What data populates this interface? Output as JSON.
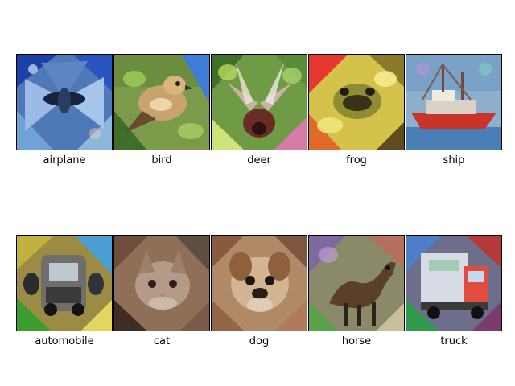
{
  "panels": [
    {
      "label": "airplane"
    },
    {
      "label": "bird"
    },
    {
      "label": "deer"
    },
    {
      "label": "frog"
    },
    {
      "label": "ship"
    },
    {
      "label": "automobile"
    },
    {
      "label": "cat"
    },
    {
      "label": "dog"
    },
    {
      "label": "horse"
    },
    {
      "label": "truck"
    }
  ]
}
